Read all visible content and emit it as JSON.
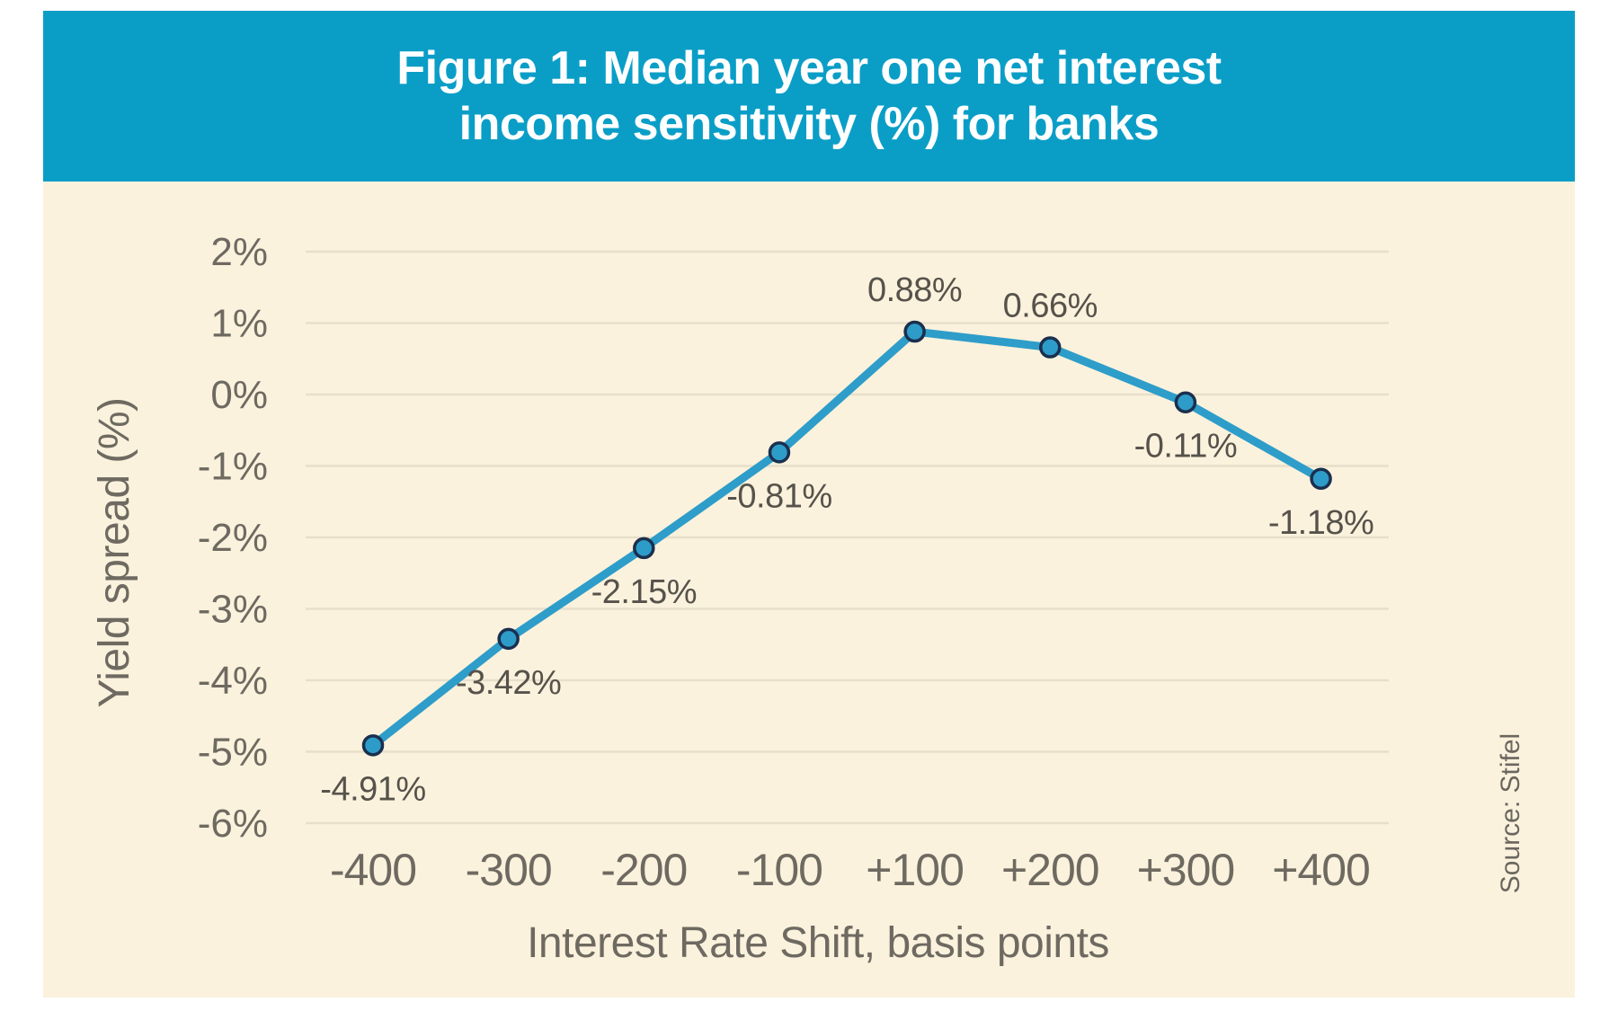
{
  "header": {
    "title_lines": [
      "Figure 1: Median year one net interest",
      "income sensitivity (%) for banks"
    ]
  },
  "colors": {
    "header_bg": "#0A9EC7",
    "chart_bg": "#FBF2DD",
    "line": "#2E9DC9",
    "marker_fill": "#2E9CC8",
    "marker_border": "#1B2F4E",
    "gridline": "#E8DFCB",
    "axis_text": "#6E6A61",
    "data_label_text": "#56524B",
    "source_text": "#6B675F",
    "title_text": "#FFFFFF"
  },
  "chart_data": {
    "type": "line",
    "title": "Figure 1: Median year one net interest income sensitivity (%) for banks",
    "categories": [
      "-400",
      "-300",
      "-200",
      "-100",
      "+100",
      "+200",
      "+300",
      "+400"
    ],
    "values": [
      -4.91,
      -3.42,
      -2.15,
      -0.81,
      0.88,
      0.66,
      -0.11,
      -1.18
    ],
    "data_labels": [
      "-4.91%",
      "-3.42%",
      "-2.15%",
      "-0.81%",
      "0.88%",
      "0.66%",
      "-0.11%",
      "-1.18%"
    ],
    "series_name": "Median year one net interest income sensitivity",
    "xlabel": "Interest Rate Shift, basis points",
    "ylabel": "Yield spread (%)",
    "ylim": [
      -6,
      2
    ],
    "ytick_values": [
      2,
      1,
      0,
      -1,
      -2,
      -3,
      -4,
      -5,
      -6
    ],
    "ytick_labels": [
      "2%",
      "1%",
      "0%",
      "-1%",
      "-2%",
      "-3%",
      "-4%",
      "-5%",
      "-6%"
    ],
    "grid": true,
    "legend": "none",
    "source": "Source: Stifel"
  }
}
